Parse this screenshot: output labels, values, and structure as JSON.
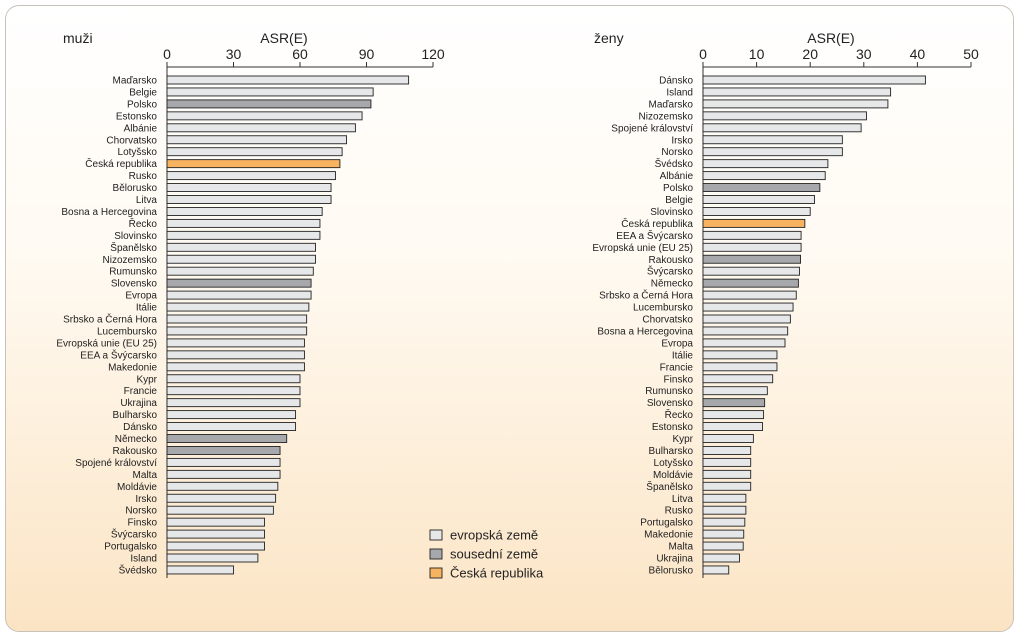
{
  "colors": {
    "evropska": "#e6e7e8",
    "sousedni": "#a6a8ab",
    "ceska": "#f7b35f",
    "bar_stroke": "#222222"
  },
  "legend": [
    {
      "label": "evropská země",
      "kind": "evropska"
    },
    {
      "label": "sousední země",
      "kind": "sousedni"
    },
    {
      "label": "Česká republika",
      "kind": "ceska"
    }
  ],
  "chart_data": [
    {
      "type": "bar",
      "orientation": "horizontal",
      "panel_label": "muži",
      "title": "ASR(E)",
      "xlim": [
        0,
        120
      ],
      "ticks": [
        0,
        30,
        60,
        90,
        120
      ],
      "categories": [
        "Maďarsko",
        "Belgie",
        "Polsko",
        "Estonsko",
        "Albánie",
        "Chorvatsko",
        "Lotyšsko",
        "Česká republika",
        "Rusko",
        "Bělorusko",
        "Litva",
        "Bosna a Hercegovina",
        "Řecko",
        "Slovinsko",
        "Španělsko",
        "Nizozemsko",
        "Rumunsko",
        "Slovensko",
        "Evropa",
        "Itálie",
        "Srbsko a Černá Hora",
        "Lucembursko",
        "Evropská unie (EU 25)",
        "EEA a Švýcarsko",
        "Makedonie",
        "Kypr",
        "Francie",
        "Ukrajina",
        "Bulharsko",
        "Dánsko",
        "Německo",
        "Rakousko",
        "Spojené království",
        "Malta",
        "Moldávie",
        "Irsko",
        "Norsko",
        "Finsko",
        "Švýcarsko",
        "Portugalsko",
        "Island",
        "Švédsko"
      ],
      "values": [
        109,
        93,
        92,
        88,
        85,
        81,
        79,
        78,
        76,
        74,
        74,
        70,
        69,
        69,
        67,
        67,
        66,
        65,
        65,
        64,
        63,
        63,
        62,
        62,
        62,
        60,
        60,
        60,
        58,
        58,
        54,
        51,
        51,
        51,
        50,
        49,
        48,
        44,
        44,
        44,
        41,
        30
      ],
      "kinds": [
        "e",
        "e",
        "s",
        "e",
        "e",
        "e",
        "e",
        "c",
        "e",
        "e",
        "e",
        "e",
        "e",
        "e",
        "e",
        "e",
        "e",
        "s",
        "e",
        "e",
        "e",
        "e",
        "e",
        "e",
        "e",
        "e",
        "e",
        "e",
        "e",
        "e",
        "s",
        "s",
        "e",
        "e",
        "e",
        "e",
        "e",
        "e",
        "e",
        "e",
        "e",
        "e"
      ]
    },
    {
      "type": "bar",
      "orientation": "horizontal",
      "panel_label": "ženy",
      "title": "ASR(E)",
      "xlim": [
        0,
        50
      ],
      "ticks": [
        0,
        10,
        20,
        30,
        40,
        50
      ],
      "categories": [
        "Dánsko",
        "Island",
        "Maďarsko",
        "Nizozemsko",
        "Spojené království",
        "Irsko",
        "Norsko",
        "Švédsko",
        "Albánie",
        "Polsko",
        "Belgie",
        "Slovinsko",
        "Česká republika",
        "EEA a Švýcarsko",
        "Evropská unie (EU 25)",
        "Rakousko",
        "Švýcarsko",
        "Německo",
        "Srbsko a Černá Hora",
        "Lucembursko",
        "Chorvatsko",
        "Bosna a Hercegovina",
        "Evropa",
        "Itálie",
        "Francie",
        "Finsko",
        "Rumunsko",
        "Slovensko",
        "Řecko",
        "Estonsko",
        "Kypr",
        "Bulharsko",
        "Lotyšsko",
        "Moldávie",
        "Španělsko",
        "Litva",
        "Rusko",
        "Portugalsko",
        "Makedonie",
        "Malta",
        "Ukrajina",
        "Bělorusko"
      ],
      "values": [
        41.5,
        35,
        34.5,
        30.5,
        29.5,
        26,
        26,
        23.3,
        22.8,
        21.8,
        20.8,
        20,
        19,
        18.3,
        18.3,
        18.2,
        18,
        17.8,
        17.4,
        16.8,
        16.3,
        15.8,
        15.3,
        13.8,
        13.8,
        13,
        12,
        11.5,
        11.3,
        11.1,
        9.4,
        8.9,
        8.9,
        8.9,
        8.9,
        8,
        8,
        7.8,
        7.6,
        7.5,
        6.8,
        4.8
      ],
      "kinds": [
        "e",
        "e",
        "e",
        "e",
        "e",
        "e",
        "e",
        "e",
        "e",
        "s",
        "e",
        "e",
        "c",
        "e",
        "e",
        "s",
        "e",
        "s",
        "e",
        "e",
        "e",
        "e",
        "e",
        "e",
        "e",
        "e",
        "e",
        "s",
        "e",
        "e",
        "e",
        "e",
        "e",
        "e",
        "e",
        "e",
        "e",
        "e",
        "e",
        "e",
        "e",
        "e"
      ]
    }
  ]
}
